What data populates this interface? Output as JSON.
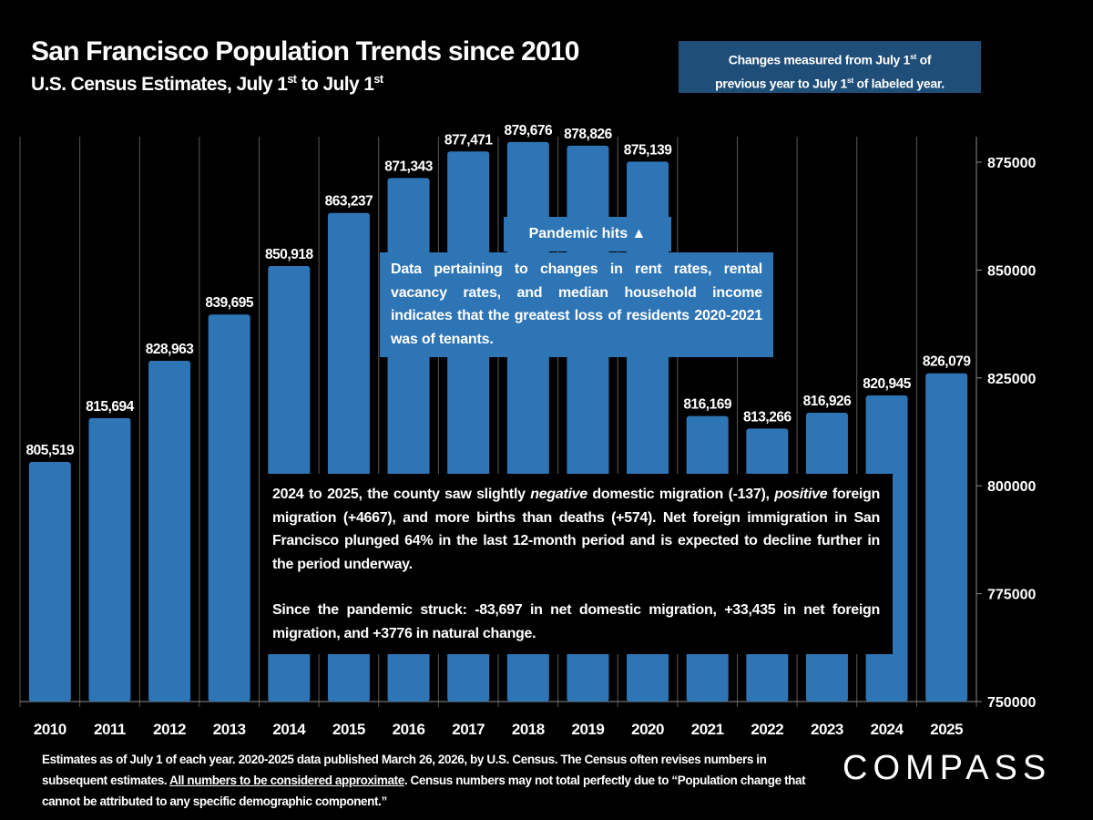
{
  "header": {
    "title": "San Francisco Population Trends since 2010",
    "subtitle_pre": "U.S. Census Estimates, July 1",
    "subtitle_sup1": "st",
    "subtitle_mid": " to July 1",
    "subtitle_sup2": "st"
  },
  "note": {
    "line1_pre": "Changes measured from July 1",
    "line1_sup": "st",
    "line1_post": " of",
    "line2_pre": "previous year to July 1",
    "line2_sup": "st",
    "line2_post": " of labeled year."
  },
  "annotations": {
    "pandemic": "Pandemic hits ▲",
    "rent": "Data pertaining to changes in rent rates, rental vacancy rates, and  median household income indicates that the greatest loss of residents 2020-2021 was of tenants.",
    "migration_p1_a": "2024 to 2025, the county saw slightly ",
    "migration_p1_neg": "negative",
    "migration_p1_b": " domestic migration (-137), ",
    "migration_p1_pos": "positive",
    "migration_p1_c": " foreign migration (+4667), and more births than deaths (+574). Net foreign immigration in San Francisco plunged 64% in the last 12-month period and is expected to decline further in the period underway.",
    "migration_p2": "Since the pandemic struck: -83,697 in net domestic migration, +33,435 in net foreign migration, and +3776 in natural change."
  },
  "footer": {
    "text_a": "Estimates as of July 1 of each year. 2020-2025 data published March 26, 2026, by U.S. Census. The Census often revises numbers in subsequent estimates. ",
    "text_underlined": "All numbers to be considered approximate",
    "text_b": ". Census numbers may not total perfectly due to “Population change that cannot be attributed to any specific demographic component.”",
    "logo": "COMPASS"
  },
  "chart_data": {
    "type": "bar",
    "categories": [
      "2010",
      "2011",
      "2012",
      "2013",
      "2014",
      "2015",
      "2016",
      "2017",
      "2018",
      "2019",
      "2020",
      "2021",
      "2022",
      "2023",
      "2024",
      "2025"
    ],
    "values": [
      805519,
      815694,
      828963,
      839695,
      850918,
      863237,
      871343,
      877471,
      879676,
      878826,
      875139,
      816169,
      813266,
      816926,
      820945,
      826079
    ],
    "data_labels": [
      "805,519",
      "815,694",
      "828,963",
      "839,695",
      "850,918",
      "863,237",
      "871,343",
      "877,471",
      "879,676",
      "878,826",
      "875,139",
      "816,169",
      "813,266",
      "816,926",
      "820,945",
      "826,079"
    ],
    "ylim": [
      750000,
      880000
    ],
    "yticks": [
      750000,
      775000,
      800000,
      825000,
      850000,
      875000
    ],
    "ytick_labels": [
      "750,000",
      "775,000",
      "800,000",
      "825,000",
      "850,000",
      "875,000"
    ],
    "y_axis_side": "right",
    "grid": "vertical",
    "bar_color": "#2e75b6"
  }
}
